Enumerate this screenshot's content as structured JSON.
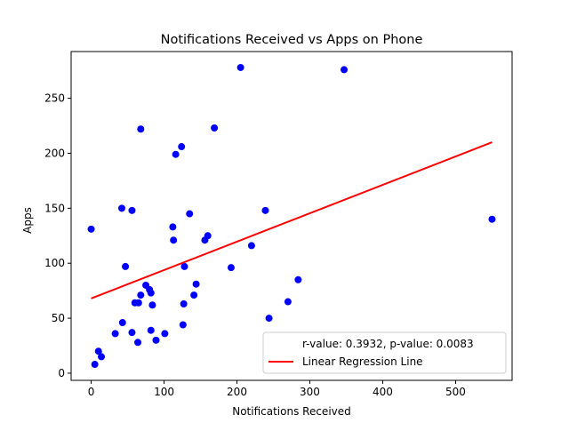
{
  "chart_data": {
    "type": "scatter",
    "title": "Notifications Received vs Apps on Phone",
    "xlabel": "Notifications Received",
    "ylabel": "Apps",
    "xlim": [
      -27.5,
      577.5
    ],
    "ylim": [
      -6.5,
      292.5
    ],
    "xticks": [
      0,
      100,
      200,
      300,
      400,
      500
    ],
    "yticks": [
      0,
      50,
      100,
      150,
      200,
      250
    ],
    "grid": false,
    "legend_position": "lower-right",
    "point_color": "#0000ff",
    "line_color": "#ff0000",
    "points": [
      {
        "x": 0,
        "y": 131
      },
      {
        "x": 5,
        "y": 8
      },
      {
        "x": 10,
        "y": 20
      },
      {
        "x": 14,
        "y": 15
      },
      {
        "x": 33,
        "y": 36
      },
      {
        "x": 42,
        "y": 150
      },
      {
        "x": 43,
        "y": 46
      },
      {
        "x": 47,
        "y": 97
      },
      {
        "x": 56,
        "y": 148
      },
      {
        "x": 56,
        "y": 37
      },
      {
        "x": 60,
        "y": 64
      },
      {
        "x": 64,
        "y": 28
      },
      {
        "x": 65,
        "y": 64
      },
      {
        "x": 68,
        "y": 222
      },
      {
        "x": 68,
        "y": 71
      },
      {
        "x": 75,
        "y": 80
      },
      {
        "x": 80,
        "y": 76
      },
      {
        "x": 82,
        "y": 73
      },
      {
        "x": 82,
        "y": 39
      },
      {
        "x": 84,
        "y": 62
      },
      {
        "x": 89,
        "y": 30
      },
      {
        "x": 101,
        "y": 36
      },
      {
        "x": 112,
        "y": 133
      },
      {
        "x": 113,
        "y": 121
      },
      {
        "x": 116,
        "y": 199
      },
      {
        "x": 124,
        "y": 206
      },
      {
        "x": 126,
        "y": 44
      },
      {
        "x": 127,
        "y": 63
      },
      {
        "x": 128,
        "y": 97
      },
      {
        "x": 135,
        "y": 145
      },
      {
        "x": 141,
        "y": 71
      },
      {
        "x": 144,
        "y": 81
      },
      {
        "x": 156,
        "y": 121
      },
      {
        "x": 160,
        "y": 125
      },
      {
        "x": 169,
        "y": 223
      },
      {
        "x": 192,
        "y": 96
      },
      {
        "x": 205,
        "y": 278
      },
      {
        "x": 220,
        "y": 116
      },
      {
        "x": 239,
        "y": 148
      },
      {
        "x": 244,
        "y": 50
      },
      {
        "x": 270,
        "y": 65
      },
      {
        "x": 284,
        "y": 85
      },
      {
        "x": 347,
        "y": 276
      },
      {
        "x": 550,
        "y": 140
      }
    ],
    "regression": {
      "x": [
        0,
        550
      ],
      "y": [
        68,
        210
      ]
    },
    "legend": [
      {
        "label": "r-value: 0.3932, p-value: 0.0083",
        "swatch": "none"
      },
      {
        "label": "Linear Regression Line",
        "swatch": "line"
      }
    ]
  }
}
